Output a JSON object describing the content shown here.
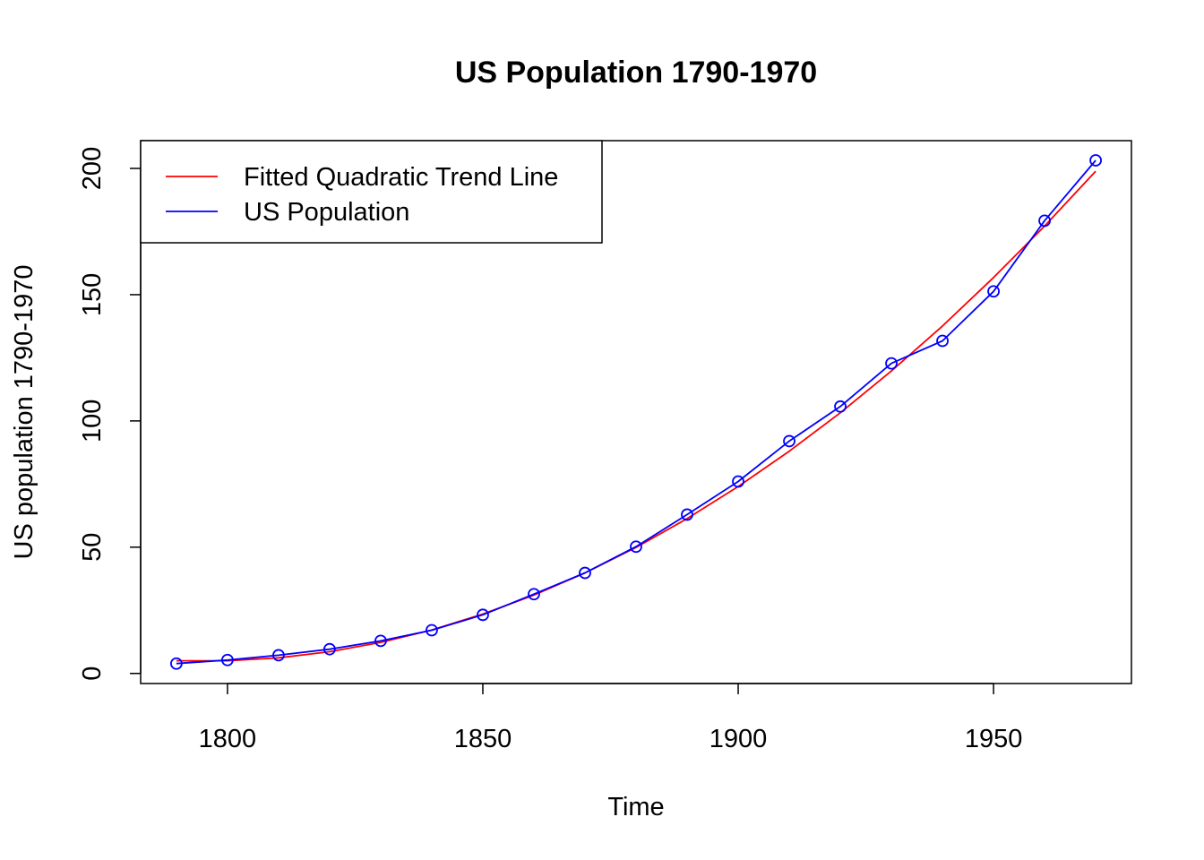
{
  "chart_data": {
    "type": "line",
    "title": "US Population 1790-1970",
    "xlabel": "Time",
    "ylabel": "US population 1790-1970",
    "xlim": [
      1783,
      1977
    ],
    "ylim": [
      -4,
      211
    ],
    "x_ticks": [
      1800,
      1850,
      1900,
      1950
    ],
    "y_ticks": [
      0,
      50,
      100,
      150,
      200
    ],
    "x_tick_labels": [
      "1800",
      "1850",
      "1900",
      "1950"
    ],
    "y_tick_labels": [
      "0",
      "50",
      "100",
      "150",
      "200"
    ],
    "grid": false,
    "legend_position": "top-left",
    "x": [
      1790,
      1800,
      1810,
      1820,
      1830,
      1840,
      1850,
      1860,
      1870,
      1880,
      1890,
      1900,
      1910,
      1920,
      1930,
      1940,
      1950,
      1960,
      1970
    ],
    "series": [
      {
        "name": "Fitted Quadratic Trend Line",
        "color": "#ff0000",
        "style": "line",
        "values": [
          5.0,
          5.0,
          6.2,
          8.6,
          12.3,
          17.2,
          23.5,
          31.0,
          39.8,
          49.9,
          61.3,
          74.0,
          88.0,
          103.2,
          119.8,
          137.6,
          156.8,
          177.2,
          198.9
        ]
      },
      {
        "name": "US Population",
        "color": "#0000ff",
        "style": "line-points",
        "values": [
          3.9,
          5.3,
          7.2,
          9.6,
          12.9,
          17.1,
          23.2,
          31.4,
          39.8,
          50.2,
          62.9,
          76.0,
          92.0,
          105.7,
          122.8,
          131.7,
          151.3,
          179.3,
          203.2
        ]
      }
    ]
  }
}
